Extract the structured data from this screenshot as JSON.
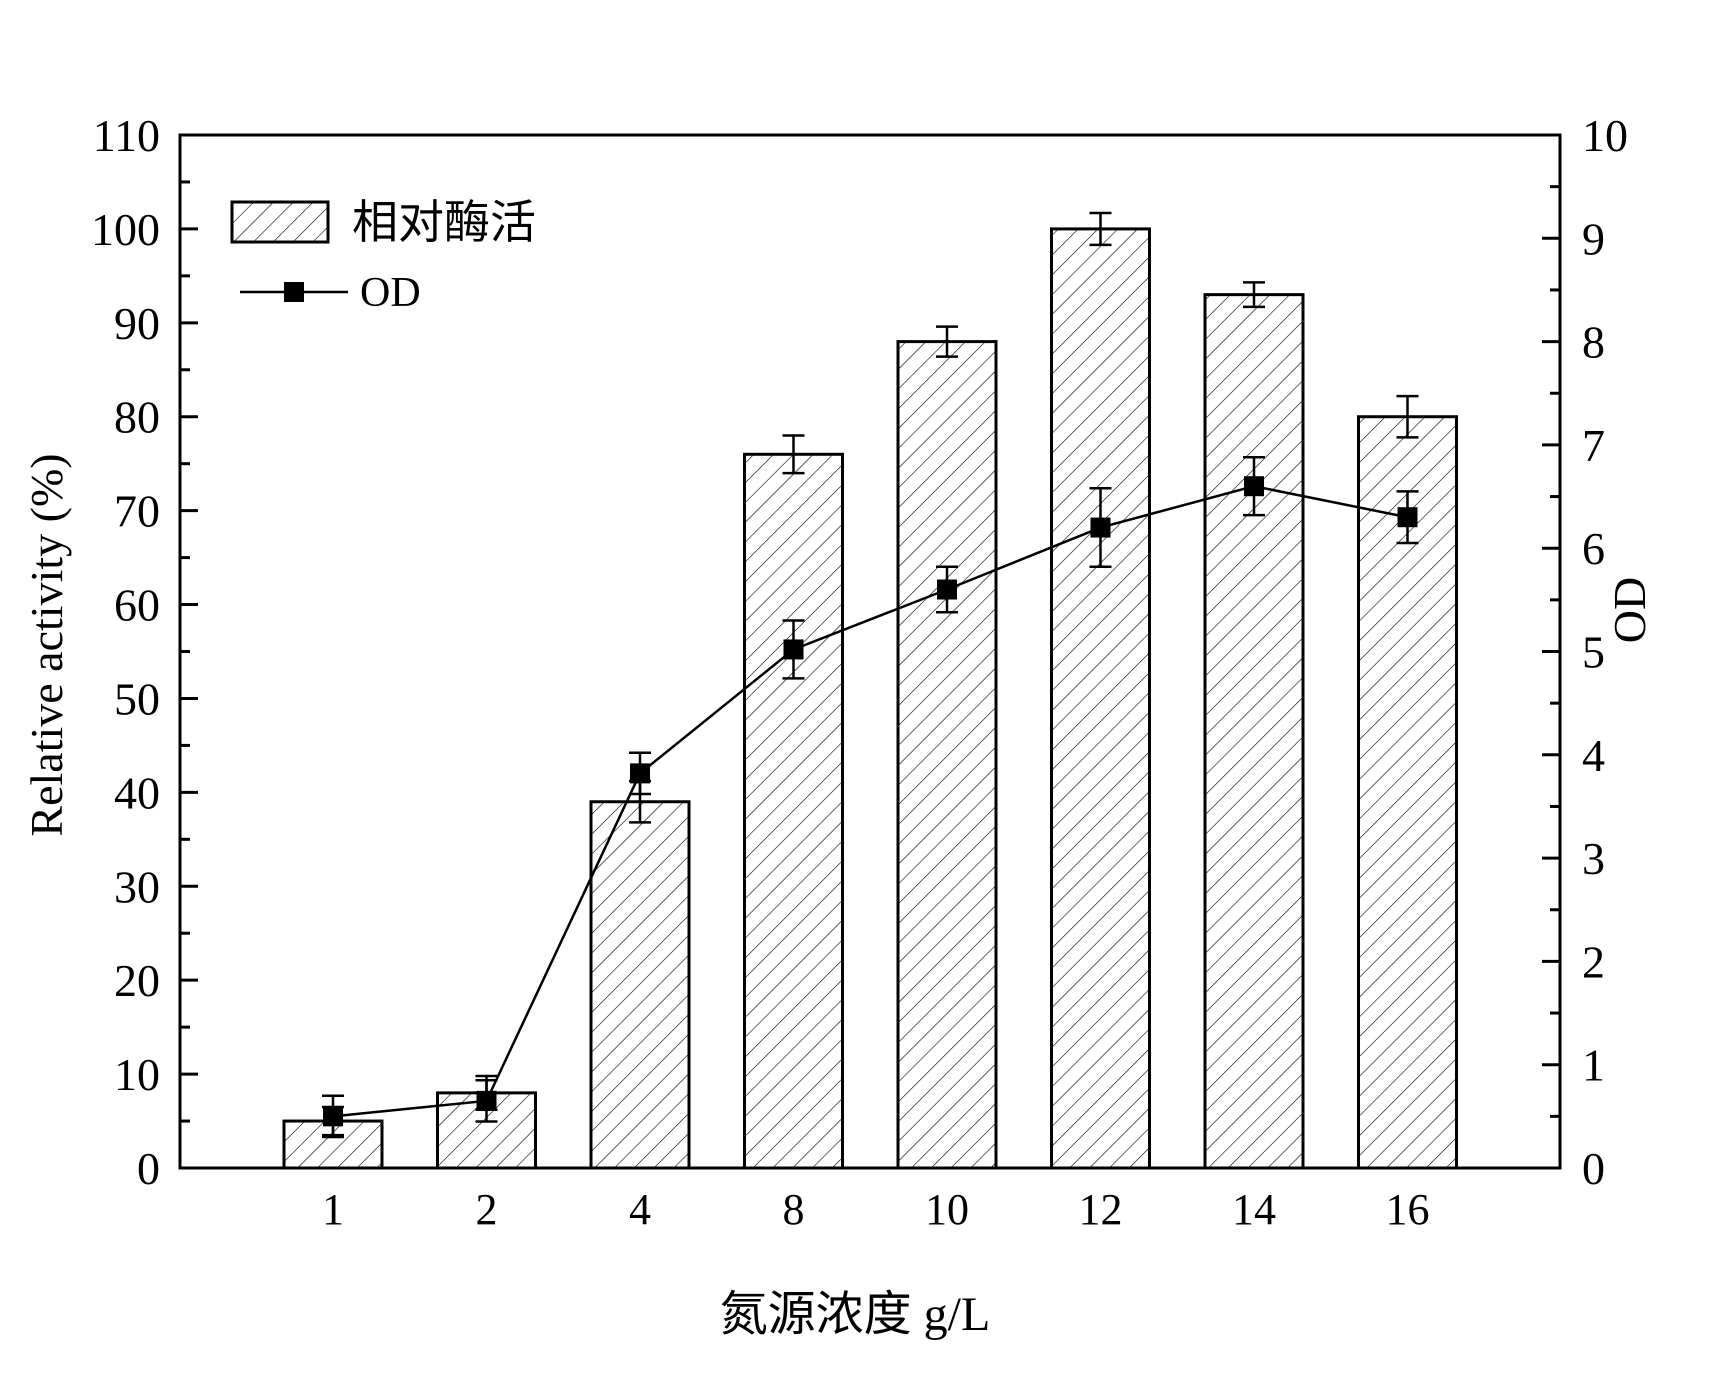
{
  "chart_data": {
    "type": "bar",
    "categories": [
      "1",
      "2",
      "4",
      "8",
      "10",
      "12",
      "14",
      "16"
    ],
    "xlabel": "氮源浓度 g/L",
    "ylabel": "Relative activity (%)",
    "y2label": "OD",
    "ylim": [
      0,
      110
    ],
    "y2lim": [
      0,
      10
    ],
    "yticks": [
      "0",
      "10",
      "20",
      "30",
      "40",
      "50",
      "60",
      "70",
      "80",
      "90",
      "100",
      "110"
    ],
    "y2ticks": [
      "0",
      "1",
      "2",
      "3",
      "4",
      "5",
      "6",
      "7",
      "8",
      "9",
      "10"
    ],
    "legend_position": "top-left",
    "series": [
      {
        "name": "相对酶活",
        "type": "bar",
        "axis": "left",
        "pattern": "diagonal-hatch",
        "values": [
          5,
          8,
          39,
          76,
          88,
          100,
          93,
          80
        ],
        "errors": [
          1.5,
          1.8,
          2.2,
          2.0,
          1.6,
          1.7,
          1.3,
          2.2
        ]
      },
      {
        "name": "OD",
        "type": "line",
        "axis": "right",
        "marker": "square",
        "values": [
          0.5,
          0.65,
          3.82,
          5.02,
          5.6,
          6.2,
          6.6,
          6.3
        ],
        "errors": [
          0.2,
          0.2,
          0.2,
          0.28,
          0.22,
          0.38,
          0.28,
          0.25
        ]
      }
    ]
  }
}
